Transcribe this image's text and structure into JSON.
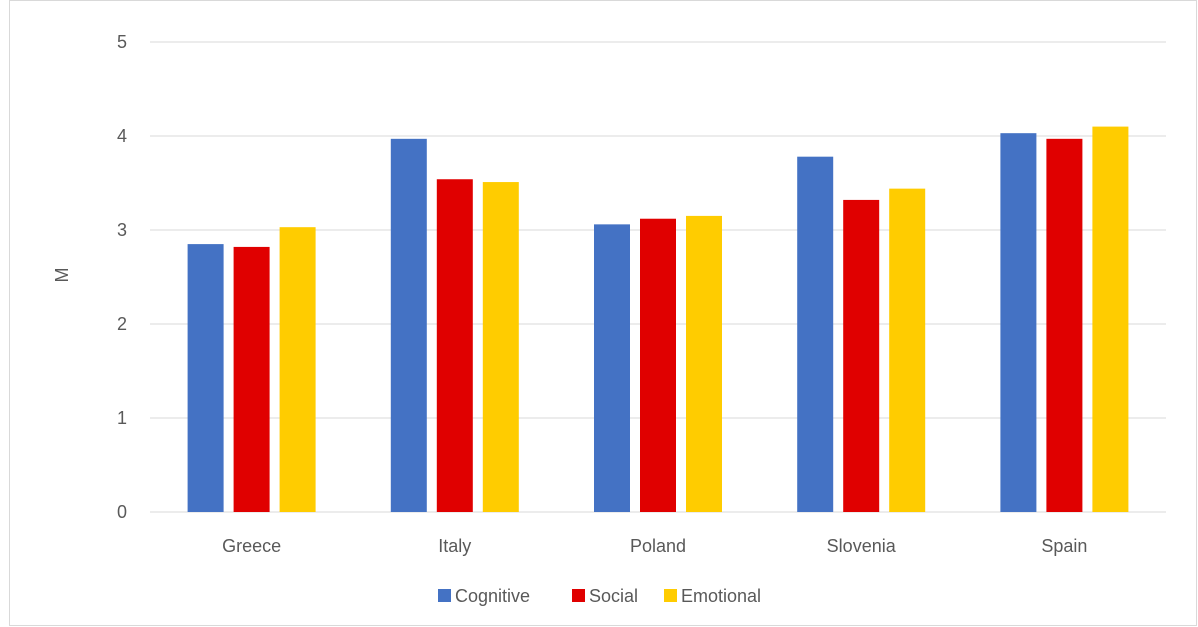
{
  "chart_data": {
    "type": "bar",
    "title": "",
    "xlabel": "",
    "ylabel": "M",
    "ylim": [
      0,
      5
    ],
    "yticks": [
      0,
      1,
      2,
      3,
      4,
      5
    ],
    "grid": true,
    "legend_position": "bottom",
    "categories": [
      "Greece",
      "Italy",
      "Poland",
      "Slovenia",
      "Spain"
    ],
    "series": [
      {
        "name": "Cognitive",
        "color": "#4472c4",
        "values": [
          2.85,
          3.97,
          3.06,
          3.78,
          4.03
        ]
      },
      {
        "name": "Social",
        "color": "#e00000",
        "values": [
          2.82,
          3.54,
          3.12,
          3.32,
          3.97
        ]
      },
      {
        "name": "Emotional",
        "color": "#ffcc00",
        "values": [
          3.03,
          3.51,
          3.15,
          3.44,
          4.1
        ]
      }
    ]
  }
}
